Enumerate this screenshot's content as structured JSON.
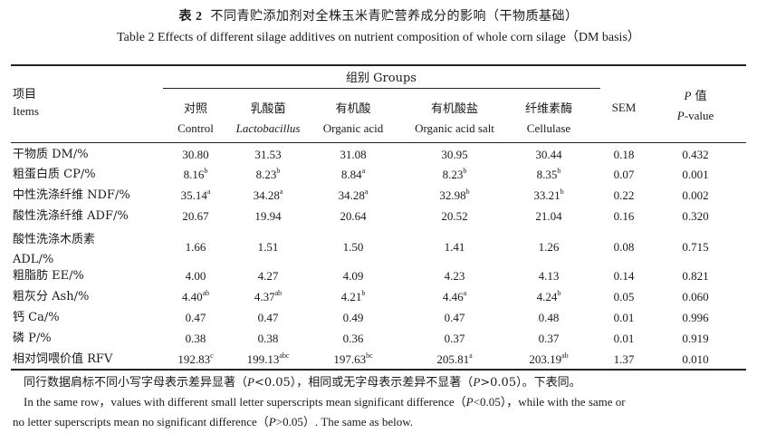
{
  "title": {
    "cn_number": "表 2",
    "cn_text": "不同青贮添加剂对全株玉米青贮营养成分的影响（干物质基础）",
    "en": "Table 2   Effects of different silage additives on nutrient composition of whole corn silage（DM basis）"
  },
  "header": {
    "items_cn": "项目",
    "items_en": "Items",
    "groups": "组别 Groups",
    "columns": [
      {
        "cn": "对照",
        "en": "Control",
        "italic": false
      },
      {
        "cn": "乳酸菌",
        "en": "Lactobacillus",
        "italic": true
      },
      {
        "cn": "有机酸",
        "en": "Organic acid",
        "italic": false
      },
      {
        "cn": "有机酸盐",
        "en": "Organic acid salt",
        "italic": false
      },
      {
        "cn": "纤维素酶",
        "en": "Cellulase",
        "italic": false
      }
    ],
    "sem": "SEM",
    "p_cn": "P 值",
    "p_en": "P-value"
  },
  "rows": [
    {
      "label": "干物质 DM/%",
      "label2": "",
      "values": [
        "30.80",
        "31.53",
        "31.08",
        "30.95",
        "30.44"
      ],
      "sups": [
        "",
        "",
        "",
        "",
        ""
      ],
      "sem": "0.18",
      "p": "0.432"
    },
    {
      "label": "粗蛋白质 CP/%",
      "label2": "",
      "values": [
        "8.16",
        "8.23",
        "8.84",
        "8.23",
        "8.35"
      ],
      "sups": [
        "b",
        "b",
        "a",
        "b",
        "b"
      ],
      "sem": "0.07",
      "p": "0.001"
    },
    {
      "label": "中性洗涤纤维 NDF/%",
      "label2": "",
      "values": [
        "35.14",
        "34.28",
        "34.28",
        "32.98",
        "33.21"
      ],
      "sups": [
        "a",
        "a",
        "a",
        "b",
        "b"
      ],
      "sem": "0.22",
      "p": "0.002"
    },
    {
      "label": "酸性洗涤纤维 ADF/%",
      "label2": "",
      "values": [
        "20.67",
        "19.94",
        "20.64",
        "20.52",
        "21.04"
      ],
      "sups": [
        "",
        "",
        "",
        "",
        ""
      ],
      "sem": "0.16",
      "p": "0.320"
    },
    {
      "label": "酸性洗涤木质素",
      "label2": "ADL/%",
      "values": [
        "1.66",
        "1.51",
        "1.50",
        "1.41",
        "1.26"
      ],
      "sups": [
        "",
        "",
        "",
        "",
        ""
      ],
      "sem": "0.08",
      "p": "0.715"
    },
    {
      "label": "粗脂肪 EE/%",
      "label2": "",
      "values": [
        "4.00",
        "4.27",
        "4.09",
        "4.23",
        "4.13"
      ],
      "sups": [
        "",
        "",
        "",
        "",
        ""
      ],
      "sem": "0.14",
      "p": "0.821"
    },
    {
      "label": "粗灰分 Ash/%",
      "label2": "",
      "values": [
        "4.40",
        "4.37",
        "4.21",
        "4.46",
        "4.24"
      ],
      "sups": [
        "ab",
        "ab",
        "b",
        "a",
        "b"
      ],
      "sem": "0.05",
      "p": "0.060"
    },
    {
      "label": "钙 Ca/%",
      "label2": "",
      "values": [
        "0.47",
        "0.47",
        "0.49",
        "0.47",
        "0.48"
      ],
      "sups": [
        "",
        "",
        "",
        "",
        ""
      ],
      "sem": "0.01",
      "p": "0.996"
    },
    {
      "label": "磷 P/%",
      "label2": "",
      "values": [
        "0.38",
        "0.38",
        "0.36",
        "0.37",
        "0.37"
      ],
      "sups": [
        "",
        "",
        "",
        "",
        ""
      ],
      "sem": "0.01",
      "p": "0.919"
    },
    {
      "label": "相对饲喂价值 RFV",
      "label2": "",
      "values": [
        "192.83",
        "199.13",
        "197.63",
        "205.81",
        "203.19"
      ],
      "sups": [
        "c",
        "abc",
        "bc",
        "a",
        "ab"
      ],
      "sem": "1.37",
      "p": "0.010"
    }
  ],
  "footnotes": {
    "cn": "同行数据肩标不同小写字母表示差异显著（P<0.05），相同或无字母表示差异不显著（P>0.05）。下表同。",
    "en_line1": "In the same row，values with different small letter superscripts mean significant difference（P<0.05），while with the same or",
    "en_line2": "no letter superscripts mean no significant difference（P>0.05）. The same as below."
  }
}
